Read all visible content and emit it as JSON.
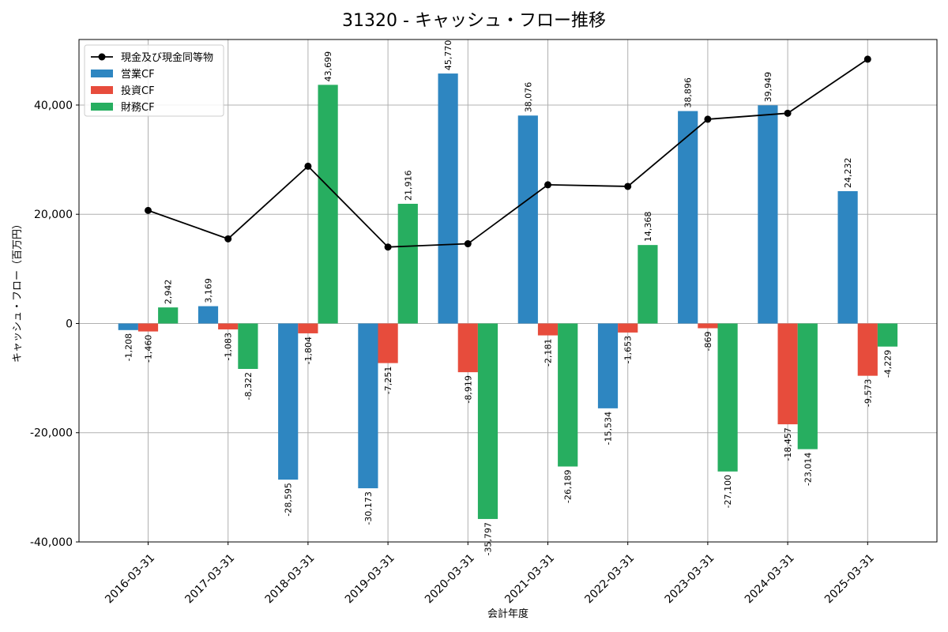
{
  "chart_data": {
    "type": "bar",
    "title": "31320 - キャッシュ・フロー推移",
    "xlabel": "会計年度",
    "ylabel": "キャッシュ・フロー（百万円）",
    "ylim": [
      -40000,
      52000
    ],
    "yticks": [
      -40000,
      -20000,
      0,
      20000,
      40000
    ],
    "ytick_labels": [
      "-40,000",
      "-20,000",
      "0",
      "20,000",
      "40,000"
    ],
    "grid": true,
    "legend_position": "top-left",
    "categories": [
      "2016-03-31",
      "2017-03-31",
      "2018-03-31",
      "2019-03-31",
      "2020-03-31",
      "2021-03-31",
      "2022-03-31",
      "2023-03-31",
      "2024-03-31",
      "2025-03-31"
    ],
    "series": [
      {
        "name": "営業CF",
        "kind": "bar",
        "color": "#2e86c1",
        "values": [
          -1208,
          3169,
          -28595,
          -30173,
          45770,
          38076,
          -15534,
          38896,
          39949,
          24232
        ],
        "labels": [
          "-1,208",
          "3,169",
          "-28,595",
          "-30,173",
          "45,770",
          "38,076",
          "-15,534",
          "38,896",
          "39,949",
          "24,232"
        ]
      },
      {
        "name": "投資CF",
        "kind": "bar",
        "color": "#e74c3c",
        "values": [
          -1460,
          -1083,
          -1804,
          -7251,
          -8919,
          -2181,
          -1653,
          -869,
          -18457,
          -9573
        ],
        "labels": [
          "-1,460",
          "-1,083",
          "-1,804",
          "-7,251",
          "-8,919",
          "-2,181",
          "-1,653",
          "-869",
          "-18,457",
          "-9,573"
        ]
      },
      {
        "name": "財務CF",
        "kind": "bar",
        "color": "#27ae60",
        "values": [
          2942,
          -8322,
          43699,
          21916,
          -35797,
          -26189,
          14368,
          -27100,
          -23014,
          -4229
        ],
        "labels": [
          "2,942",
          "-8,322",
          "43,699",
          "21,916",
          "-35,797",
          "-26,189",
          "14,368",
          "-27,100",
          "-23,014",
          "-4,229"
        ]
      },
      {
        "name": "現金及び現金同等物",
        "kind": "line",
        "color": "#000000",
        "values": [
          20700,
          15500,
          28800,
          14000,
          14600,
          25400,
          25100,
          37400,
          38500,
          48400
        ]
      }
    ]
  }
}
